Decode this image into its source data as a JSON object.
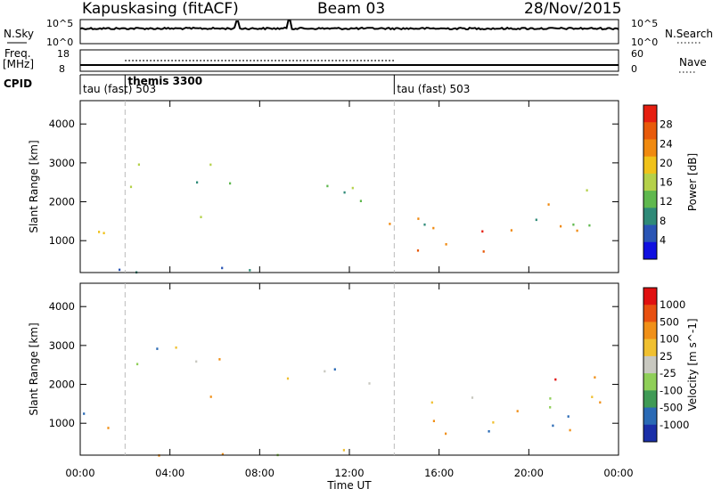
{
  "header": {
    "station": "Kapuskasing (fitACF)",
    "beam": "Beam 03",
    "date": "28/Nov/2015"
  },
  "top_panels": {
    "nsky_label": "N.Sky",
    "nsky_ticks": [
      "10^5",
      "10^0"
    ],
    "nsearch_label": "N.Search",
    "nsearch_ticks": [
      "10^5",
      "10^0"
    ],
    "freq_label": "Freq.",
    "freq_unit": "[MHz]",
    "freq_ticks": [
      "18",
      "8"
    ],
    "nave_label": "Nave",
    "nave_ticks": [
      "60",
      "0"
    ],
    "cpid_label": "CPID",
    "cpid_entries": [
      {
        "label": "tau (fast) 503",
        "start_hour": 0
      },
      {
        "label": "themis 3300",
        "start_hour": 2
      },
      {
        "label": "tau (fast) 503",
        "start_hour": 14
      }
    ],
    "dotted_nave_hours": [
      2,
      14
    ]
  },
  "chart_data": [
    {
      "type": "heatmap",
      "title": "",
      "xlabel": "Time UT",
      "ylabel": "Slant Range [km]",
      "x_ticks": [
        "00:00",
        "04:00",
        "08:00",
        "12:00",
        "16:00",
        "20:00",
        "00:00"
      ],
      "x_range_hours": [
        0,
        24
      ],
      "y_ticks": [
        1000,
        2000,
        3000,
        4000
      ],
      "ylim": [
        180,
        4600
      ],
      "colorbar_label": "Power [dB]",
      "colorbar_ticks": [
        "28",
        "24",
        "20",
        "16",
        "12",
        "8",
        "4"
      ],
      "colorbar_range": [
        0,
        32
      ],
      "colors": [
        "#1010e0",
        "#2a55b5",
        "#2f8a78",
        "#5fb84e",
        "#b5d14a",
        "#f0c21a",
        "#f08a10",
        "#e85a0a",
        "#e61e10"
      ],
      "blobs": [
        {
          "t0": 0.0,
          "t1": 1.5,
          "r0": 700,
          "r1": 1800,
          "v": 18
        },
        {
          "t0": 1.0,
          "t1": 1.7,
          "r0": 800,
          "r1": 1400,
          "v": 26
        },
        {
          "t0": 1.9,
          "t1": 8.5,
          "r0": 2300,
          "r1": 3000,
          "v": 14
        },
        {
          "t0": 8.5,
          "t1": 13.5,
          "r0": 1800,
          "r1": 2500,
          "v": 12
        },
        {
          "t0": 5.3,
          "t1": 6.5,
          "r0": 1300,
          "r1": 1800,
          "v": 20
        },
        {
          "t0": 6.8,
          "t1": 9.0,
          "r0": 1100,
          "r1": 1300,
          "v": 10
        },
        {
          "t0": 13.5,
          "t1": 23.5,
          "r0": 700,
          "r1": 1600,
          "v": 25
        },
        {
          "t0": 13.5,
          "t1": 23.5,
          "r0": 1400,
          "r1": 1800,
          "v": 12
        },
        {
          "t0": 20.5,
          "t1": 23.0,
          "r0": 1800,
          "r1": 2600,
          "v": 20
        },
        {
          "t0": 23.3,
          "t1": 24.0,
          "r0": 600,
          "r1": 1200,
          "v": 6
        },
        {
          "t0": 1.5,
          "t1": 14.0,
          "r0": 200,
          "r1": 500,
          "v": 6
        },
        {
          "t0": 3.5,
          "t1": 4.8,
          "r0": 4300,
          "r1": 4450,
          "v": 2
        }
      ]
    },
    {
      "type": "heatmap",
      "title": "",
      "xlabel": "Time UT",
      "ylabel": "Slant Range [km]",
      "x_ticks": [
        "00:00",
        "04:00",
        "08:00",
        "12:00",
        "16:00",
        "20:00",
        "00:00"
      ],
      "x_range_hours": [
        0,
        24
      ],
      "y_ticks": [
        1000,
        2000,
        3000,
        4000
      ],
      "ylim": [
        180,
        4600
      ],
      "colorbar_label": "Velocity [m s^-1]",
      "colorbar_ticks": [
        "1000",
        "500",
        "100",
        "25",
        "-25",
        "-100",
        "-500",
        "-1000"
      ],
      "colorbar_range": [
        -1000,
        1000
      ],
      "colors": [
        "#1a2fa8",
        "#2a6ab5",
        "#3f9a55",
        "#8fcf58",
        "#c8c8c0",
        "#f0c030",
        "#f09018",
        "#e85010",
        "#e01010"
      ],
      "blobs": [
        {
          "t0": 0.0,
          "t1": 1.5,
          "r0": 700,
          "r1": 1800,
          "v": 0
        },
        {
          "t0": 1.0,
          "t1": 1.7,
          "r0": 800,
          "r1": 1400,
          "v": -300
        },
        {
          "t0": 1.9,
          "t1": 8.5,
          "r0": 2300,
          "r1": 3000,
          "v": 0
        },
        {
          "t0": 8.5,
          "t1": 13.5,
          "r0": 1800,
          "r1": 2500,
          "v": 0
        },
        {
          "t0": 5.3,
          "t1": 6.5,
          "r0": 1300,
          "r1": 1800,
          "v": -400
        },
        {
          "t0": 6.8,
          "t1": 9.0,
          "r0": 1100,
          "r1": 1300,
          "v": 150
        },
        {
          "t0": 13.5,
          "t1": 23.5,
          "r0": 700,
          "r1": 1600,
          "v": 0
        },
        {
          "t0": 13.5,
          "t1": 23.5,
          "r0": 1400,
          "r1": 1800,
          "v": 0
        },
        {
          "t0": 20.5,
          "t1": 23.0,
          "r0": 1800,
          "r1": 2600,
          "v": -600
        },
        {
          "t0": 23.3,
          "t1": 24.0,
          "r0": 600,
          "r1": 1200,
          "v": -150
        },
        {
          "t0": 1.5,
          "t1": 14.0,
          "r0": 200,
          "r1": 500,
          "v": -150
        },
        {
          "t0": 3.5,
          "t1": 4.8,
          "r0": 4300,
          "r1": 4450,
          "v": 0
        }
      ]
    }
  ]
}
